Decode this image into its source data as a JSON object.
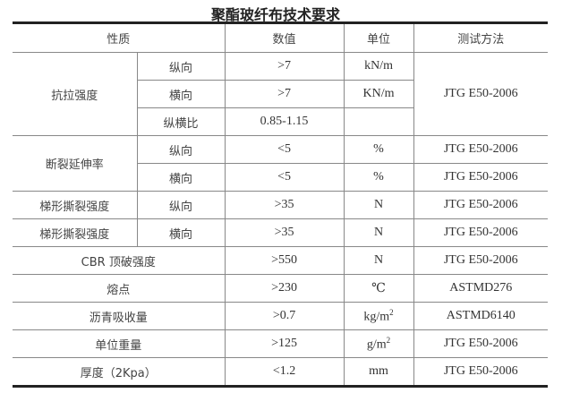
{
  "title": "聚酯玻纤布技术要求",
  "headers": {
    "property": "性质",
    "value": "数值",
    "unit": "单位",
    "method": "测试方法"
  },
  "rows": {
    "tensile": {
      "label": "抗拉强度",
      "method": "JTG E50-2006",
      "sub": [
        {
          "dir": "纵向",
          "value": ">7",
          "unit": "kN/m"
        },
        {
          "dir": "横向",
          "value": ">7",
          "unit": "KN/m"
        },
        {
          "dir": "纵横比",
          "value": "0.85-1.15",
          "unit": ""
        }
      ]
    },
    "elongation": {
      "label": "断裂延伸率",
      "sub": [
        {
          "dir": "纵向",
          "value": "<5",
          "unit": "%",
          "method": "JTG E50-2006"
        },
        {
          "dir": "横向",
          "value": "<5",
          "unit": "%",
          "method": "JTG E50-2006"
        }
      ]
    },
    "trapezoid": [
      {
        "label": "梯形撕裂强度",
        "dir": "纵向",
        "value": ">35",
        "unit": "N",
        "method": "JTG E50-2006"
      },
      {
        "label": "梯形撕裂强度",
        "dir": "横向",
        "value": ">35",
        "unit": "N",
        "method": "JTG E50-2006"
      }
    ],
    "simple": [
      {
        "label": "CBR 顶破强度",
        "value": ">550",
        "unit": "N",
        "unit_sup": "",
        "method": "JTG E50-2006"
      },
      {
        "label": "熔点",
        "value": ">230",
        "unit": "℃",
        "unit_sup": "",
        "method": "ASTMD276"
      },
      {
        "label": "沥青吸收量",
        "value": ">0.7",
        "unit": "kg/m",
        "unit_sup": "2",
        "method": "ASTMD6140"
      },
      {
        "label": "单位重量",
        "value": ">125",
        "unit": "g/m",
        "unit_sup": "2",
        "method": "JTG E50-2006"
      },
      {
        "label": "厚度（2Kpa）",
        "value": "<1.2",
        "unit": "mm",
        "unit_sup": "",
        "method": "JTG E50-2006"
      }
    ]
  }
}
